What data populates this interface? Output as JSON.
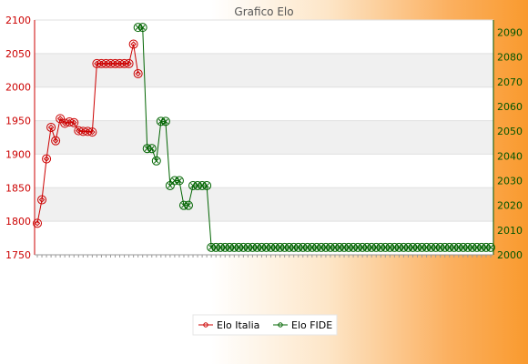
{
  "chart_data": {
    "type": "line",
    "title": "Grafico Elo",
    "xlabel": "",
    "y_left": {
      "label": "",
      "ylim": [
        1750,
        2100
      ],
      "ticks": [
        "1750",
        "1800",
        "1850",
        "1900",
        "1950",
        "2000",
        "2050",
        "2100"
      ],
      "color": "#cc0000"
    },
    "y_right": {
      "label": "",
      "ylim": [
        2000,
        2095
      ],
      "ticks": [
        "2000",
        "2010",
        "2020",
        "2030",
        "2040",
        "2050",
        "2060",
        "2070",
        "2080",
        "2090"
      ],
      "color": "#005500"
    },
    "x_count": 100,
    "grid": true,
    "legend_position": "bottom-center",
    "series": [
      {
        "name": "Elo Italia",
        "axis": "left",
        "color": "#cc0000",
        "marker": "diamond-circle",
        "values": [
          1797,
          1832,
          1893,
          1940,
          1920,
          1953,
          1946,
          1948,
          1947,
          1935,
          1934,
          1934,
          1933,
          2035,
          2035,
          2035,
          2035,
          2035,
          2035,
          2035,
          2035,
          2064,
          2020
        ]
      },
      {
        "name": "Elo FIDE",
        "axis": "right",
        "color": "#006400",
        "marker": "x-circle",
        "start_index": 22,
        "values": [
          2092,
          2092,
          2043,
          2043,
          2038,
          2054,
          2054,
          2028,
          2030,
          2030,
          2020,
          2020,
          2028,
          2028,
          2028,
          2028,
          2003,
          2003,
          2003,
          2003,
          2003,
          2003,
          2003,
          2003,
          2003,
          2003,
          2003,
          2003,
          2003,
          2003,
          2003,
          2003,
          2003,
          2003,
          2003,
          2003,
          2003,
          2003,
          2003,
          2003,
          2003,
          2003,
          2003,
          2003,
          2003,
          2003,
          2003,
          2003,
          2003,
          2003,
          2003,
          2003,
          2003,
          2003,
          2003,
          2003,
          2003,
          2003,
          2003,
          2003,
          2003,
          2003,
          2003,
          2003,
          2003,
          2003,
          2003,
          2003,
          2003,
          2003,
          2003,
          2003,
          2003,
          2003,
          2003,
          2003,
          2003,
          2003
        ]
      }
    ]
  }
}
